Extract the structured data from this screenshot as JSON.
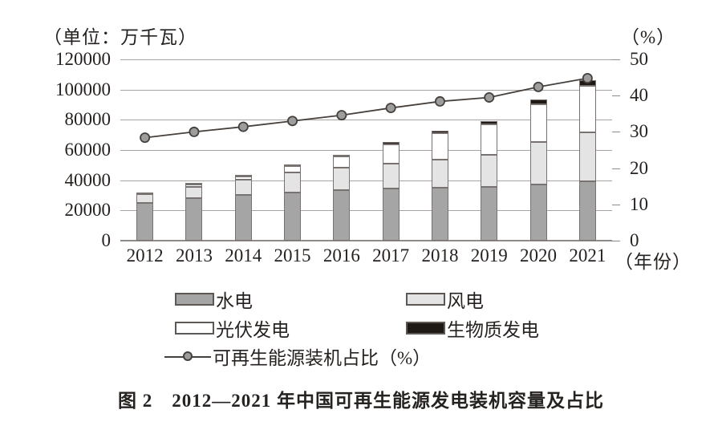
{
  "header": {
    "left_unit": "（单位：万千瓦）",
    "right_unit": "（%）"
  },
  "x_axis_suffix": "（年份）",
  "caption": "图 2　2012—2021 年中国可再生能源发电装机容量及占比",
  "colors": {
    "hydro": "#a5a5a5",
    "wind": "#e4e4e4",
    "solar": "#ffffff",
    "biomass": "#1e1914",
    "line": "#46403c",
    "marker_fill": "#9d9d9d",
    "grid": "#a8a4a1",
    "text": "#262220"
  },
  "chart_data": {
    "type": "bar",
    "subtype": "stacked-bars-with-percentage-line",
    "title": "图 2　2012—2021 年中国可再生能源发电装机容量及占比",
    "categories": [
      "2012",
      "2013",
      "2014",
      "2015",
      "2016",
      "2017",
      "2018",
      "2019",
      "2020",
      "2021"
    ],
    "series": [
      {
        "name": "水电",
        "color": "#a5a5a5",
        "values": [
          24890,
          28044,
          30486,
          31954,
          33211,
          34411,
          35226,
          35640,
          37016,
          39092
        ]
      },
      {
        "name": "风电",
        "color": "#e4e4e4",
        "values": [
          6142,
          7652,
          9657,
          13075,
          14864,
          16367,
          18426,
          21005,
          28153,
          32848
        ]
      },
      {
        "name": "光伏发电",
        "color": "#ffffff",
        "values": [
          341,
          1589,
          2486,
          4318,
          7742,
          13025,
          17463,
          20468,
          25343,
          30656
        ]
      },
      {
        "name": "生物质发电",
        "color": "#1e1914",
        "values": [
          580,
          779,
          946,
          1031,
          1214,
          1476,
          1781,
          2254,
          2952,
          3798
        ]
      }
    ],
    "line_series": {
      "name": "可再生能源装机占比（%）",
      "axis": "right",
      "values": [
        28.4,
        30.0,
        31.4,
        33.0,
        34.6,
        36.6,
        38.4,
        39.5,
        42.4,
        44.8
      ]
    },
    "left_axis": {
      "label": "（单位：万千瓦）",
      "min": 0,
      "max": 120000,
      "ticks": [
        0,
        20000,
        40000,
        60000,
        80000,
        100000,
        120000
      ]
    },
    "right_axis": {
      "label": "（%）",
      "min": 0,
      "max": 50,
      "ticks": [
        0,
        10,
        20,
        30,
        40,
        50
      ]
    },
    "x_axis_label": "（年份）",
    "grid": true,
    "legend_position": "bottom"
  }
}
